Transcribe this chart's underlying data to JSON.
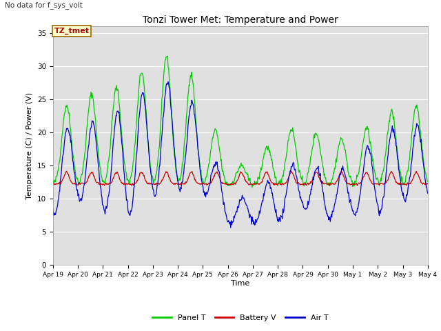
{
  "title": "Tonzi Tower Met: Temperature and Power",
  "no_data_text": "No data for f_sys_volt",
  "label_box_text": "TZ_tmet",
  "ylabel": "Temperature (C) / Power (V)",
  "xlabel": "Time",
  "ylim": [
    0,
    36
  ],
  "yticks": [
    0,
    5,
    10,
    15,
    20,
    25,
    30,
    35
  ],
  "x_tick_labels": [
    "Apr 19",
    "Apr 20",
    "Apr 21",
    "Apr 22",
    "Apr 23",
    "Apr 24",
    "Apr 25",
    "Apr 26",
    "Apr 27",
    "Apr 28",
    "Apr 29",
    "Apr 30",
    "May 1",
    "May 2",
    "May 3",
    "May 4"
  ],
  "panel_color": "#00cc00",
  "battery_color": "#cc0000",
  "air_color": "#0000cc",
  "legend_labels": [
    "Panel T",
    "Battery V",
    "Air T"
  ],
  "bg_color": "#e0e0e0",
  "fig_bg": "#ffffff",
  "grid_color": "#ffffff",
  "label_box_bg": "#ffffcc",
  "label_box_border": "#996600",
  "label_box_text_color": "#aa0000",
  "n_days": 15,
  "panel_base": 12.0,
  "battery_base": 12.2
}
